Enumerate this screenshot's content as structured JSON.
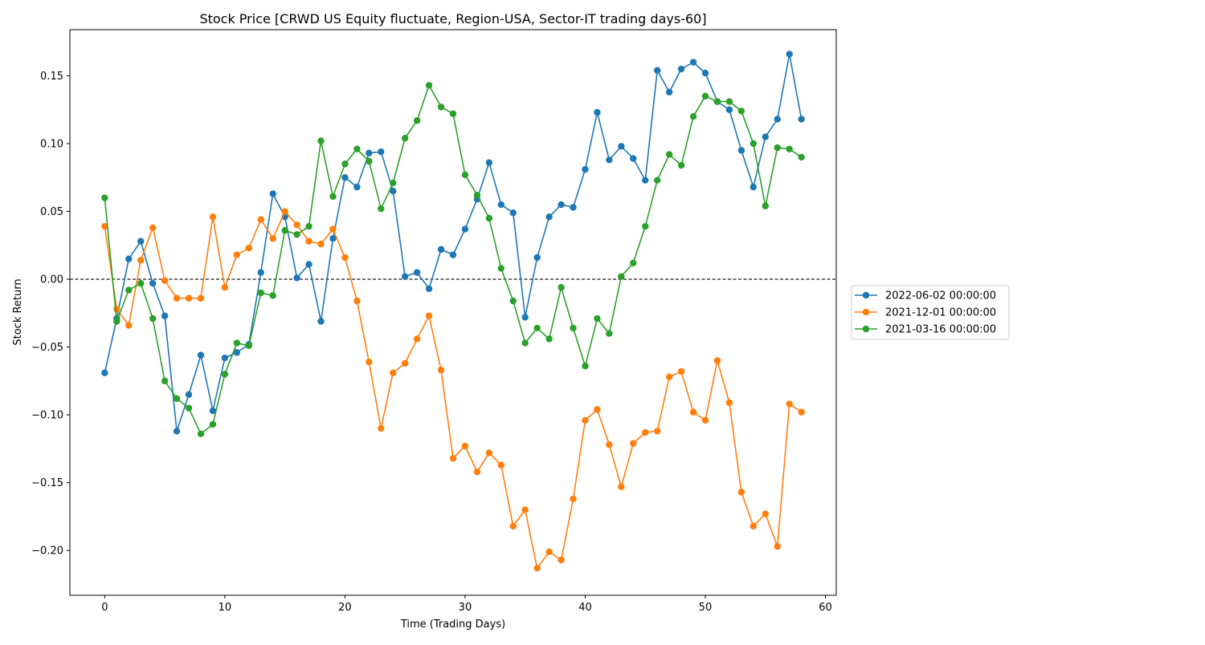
{
  "chart_data": {
    "type": "line",
    "title": "Stock Price [CRWD US Equity fluctuate, Region-USA, Sector-IT trading days-60]",
    "xlabel": "Time (Trading Days)",
    "ylabel": "Stock Return",
    "xlim": [
      -2.9,
      60.9
    ],
    "ylim": [
      -0.233,
      0.184
    ],
    "xticks": [
      0,
      10,
      20,
      30,
      40,
      50,
      60
    ],
    "xtick_labels": [
      "0",
      "10",
      "20",
      "30",
      "40",
      "50",
      "60"
    ],
    "yticks": [
      -0.2,
      -0.15,
      -0.1,
      -0.05,
      0.0,
      0.05,
      0.1,
      0.15
    ],
    "ytick_labels": [
      "−0.20",
      "−0.15",
      "−0.10",
      "−0.05",
      "0.00",
      "0.05",
      "0.10",
      "0.15"
    ],
    "reference_line": {
      "y": 0.0,
      "style": "dashed",
      "color": "#000000"
    },
    "grid": false,
    "legend_position": "outside-right",
    "x": [
      0,
      1,
      2,
      3,
      4,
      5,
      6,
      7,
      8,
      9,
      10,
      11,
      12,
      13,
      14,
      15,
      16,
      17,
      18,
      19,
      20,
      21,
      22,
      23,
      24,
      25,
      26,
      27,
      28,
      29,
      30,
      31,
      32,
      33,
      34,
      35,
      36,
      37,
      38,
      39,
      40,
      41,
      42,
      43,
      44,
      45,
      46,
      47,
      48,
      49,
      50,
      51,
      52,
      53,
      54,
      55,
      56,
      57,
      58
    ],
    "series": [
      {
        "name": "2022-06-02 00:00:00",
        "color": "#1f77b4",
        "values": [
          -0.069,
          -0.029,
          0.015,
          0.028,
          -0.003,
          -0.027,
          -0.112,
          -0.085,
          -0.056,
          -0.097,
          -0.058,
          -0.054,
          -0.048,
          0.005,
          0.063,
          0.046,
          0.001,
          0.011,
          -0.031,
          0.03,
          0.075,
          0.068,
          0.093,
          0.094,
          0.065,
          0.002,
          0.005,
          -0.007,
          0.022,
          0.018,
          0.037,
          0.059,
          0.086,
          0.055,
          0.049,
          -0.028,
          0.016,
          0.046,
          0.055,
          0.053,
          0.081,
          0.123,
          0.088,
          0.098,
          0.089,
          0.073,
          0.154,
          0.138,
          0.155,
          0.16,
          0.152,
          0.131,
          0.125,
          0.095,
          0.068,
          0.105,
          0.118,
          0.166,
          0.118
        ]
      },
      {
        "name": "2021-12-01 00:00:00",
        "color": "#ff7f0e",
        "values": [
          0.039,
          -0.022,
          -0.034,
          0.014,
          0.038,
          -0.001,
          -0.014,
          -0.014,
          -0.014,
          0.046,
          -0.006,
          0.018,
          0.023,
          0.044,
          0.03,
          0.05,
          0.04,
          0.028,
          0.026,
          0.037,
          0.016,
          -0.016,
          -0.061,
          -0.11,
          -0.069,
          -0.062,
          -0.044,
          -0.027,
          -0.067,
          -0.132,
          -0.123,
          -0.142,
          -0.128,
          -0.137,
          -0.182,
          -0.17,
          -0.213,
          -0.201,
          -0.207,
          -0.162,
          -0.104,
          -0.096,
          -0.122,
          -0.153,
          -0.121,
          -0.113,
          -0.112,
          -0.072,
          -0.068,
          -0.098,
          -0.104,
          -0.06,
          -0.091,
          -0.157,
          -0.182,
          -0.173,
          -0.197,
          -0.092,
          -0.098
        ]
      },
      {
        "name": "2021-03-16 00:00:00",
        "color": "#2ca02c",
        "values": [
          0.06,
          -0.031,
          -0.008,
          -0.003,
          -0.029,
          -0.075,
          -0.088,
          -0.095,
          -0.114,
          -0.107,
          -0.07,
          -0.047,
          -0.049,
          -0.01,
          -0.012,
          0.036,
          0.033,
          0.039,
          0.102,
          0.061,
          0.085,
          0.096,
          0.087,
          0.052,
          0.071,
          0.104,
          0.117,
          0.143,
          0.127,
          0.122,
          0.077,
          0.062,
          0.045,
          0.008,
          -0.016,
          -0.047,
          -0.036,
          -0.044,
          -0.006,
          -0.036,
          -0.064,
          -0.029,
          -0.04,
          0.002,
          0.012,
          0.039,
          0.073,
          0.092,
          0.084,
          0.12,
          0.135,
          0.131,
          0.131,
          0.124,
          0.1,
          0.054,
          0.097,
          0.096,
          0.09
        ]
      }
    ]
  }
}
